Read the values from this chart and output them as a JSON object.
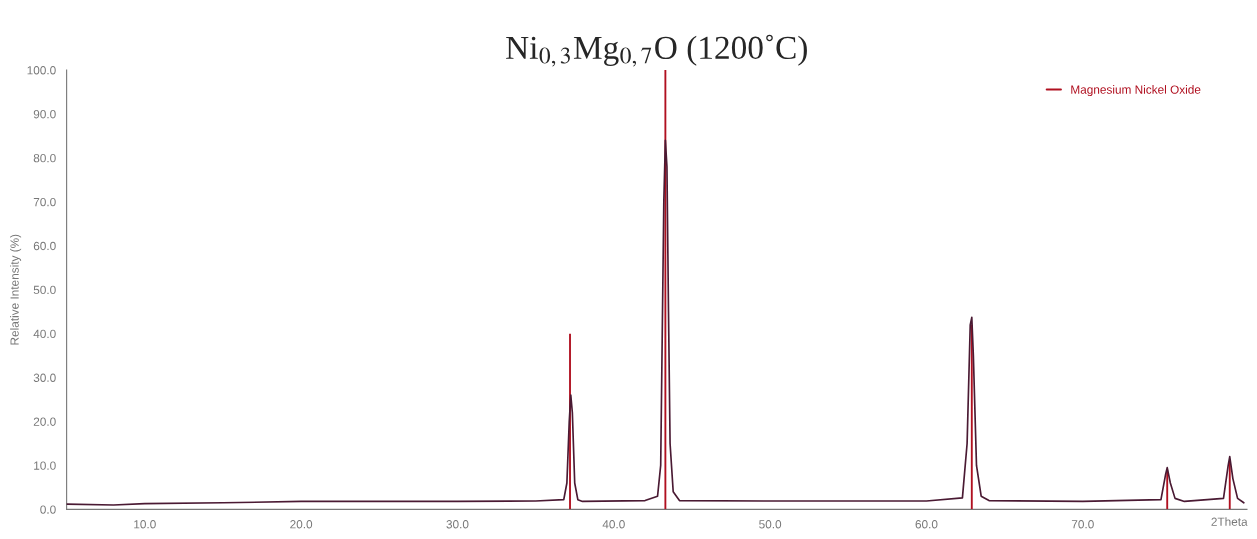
{
  "chart_data": {
    "type": "line",
    "title": "Ni$_{0,3}$Mg$_{0,7}$O (1200˚C)",
    "xlabel": "2Theta",
    "ylabel": "Relative Intensity (%)",
    "xlim": [
      5,
      80.5
    ],
    "ylim": [
      0,
      100
    ],
    "xticks": [
      {
        "value": 10,
        "label": "10.0"
      },
      {
        "value": 20,
        "label": "20.0"
      },
      {
        "value": 30,
        "label": "30.0"
      },
      {
        "value": 40,
        "label": "40.0"
      },
      {
        "value": 50,
        "label": "50.0"
      },
      {
        "value": 60,
        "label": "60.0"
      },
      {
        "value": 70,
        "label": "70.0"
      }
    ],
    "yticks": [
      {
        "value": 0,
        "label": "0.0"
      },
      {
        "value": 10,
        "label": "10.0"
      },
      {
        "value": 20,
        "label": "20.0"
      },
      {
        "value": 30,
        "label": "30.0"
      },
      {
        "value": 40,
        "label": "40.0"
      },
      {
        "value": 50,
        "label": "50.0"
      },
      {
        "value": 60,
        "label": "60.0"
      },
      {
        "value": 70,
        "label": "70.0"
      },
      {
        "value": 80,
        "label": "80.0"
      },
      {
        "value": 90,
        "label": "90.0"
      },
      {
        "value": 100,
        "label": "100.0"
      }
    ],
    "grid": false,
    "legend": "top right",
    "series": [
      {
        "color": "#4a1a33",
        "x": [
          5,
          8,
          10,
          15,
          20,
          25,
          30,
          35,
          36.8,
          37.0,
          37.15,
          37.25,
          37.35,
          37.5,
          37.7,
          38,
          42,
          42.8,
          43.0,
          43.1,
          43.2,
          43.3,
          43.4,
          43.5,
          43.6,
          43.8,
          44.2,
          50,
          60,
          62.3,
          62.6,
          62.8,
          62.9,
          63.0,
          63.2,
          63.5,
          64,
          70,
          75.0,
          75.3,
          75.4,
          75.6,
          75.9,
          76.5,
          79.0,
          79.3,
          79.4,
          79.6,
          79.9,
          80.3
        ],
        "values": [
          1.2,
          1.0,
          1.3,
          1.5,
          1.8,
          1.8,
          1.8,
          1.9,
          2.2,
          6,
          20,
          26,
          22,
          6,
          2.2,
          1.8,
          2.0,
          3.0,
          10,
          40,
          70,
          84,
          78,
          45,
          15,
          4,
          2,
          1.9,
          1.9,
          2.6,
          15,
          42,
          43.7,
          35,
          10,
          3,
          2,
          1.8,
          2.2,
          8,
          9.5,
          6,
          2.5,
          1.8,
          2.5,
          10,
          12,
          7,
          2.5,
          1.5
        ]
      },
      {
        "type": "bar",
        "name": "Magnesium Nickel Oxide",
        "color": "#b01020",
        "x": [
          37.2,
          43.3,
          62.9,
          75.4,
          79.4
        ],
        "values": [
          40,
          100,
          42,
          9,
          11
        ]
      }
    ]
  }
}
